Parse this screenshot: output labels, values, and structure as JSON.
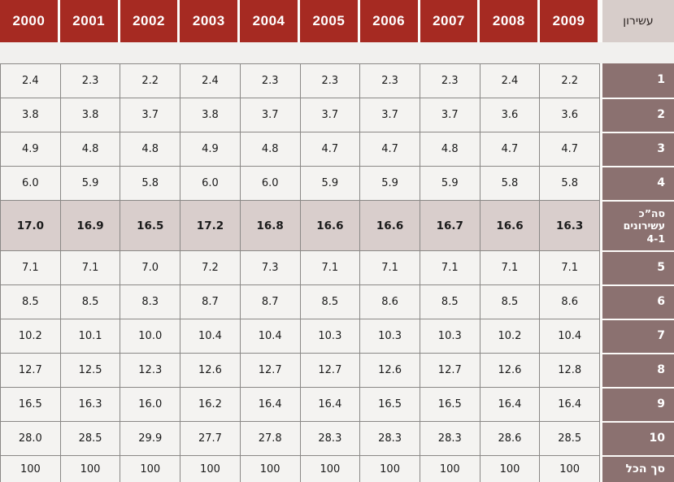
{
  "chart_data": {
    "type": "table",
    "direction": "rtl",
    "row_header_label": "עשירון",
    "columns": [
      "2000",
      "2001",
      "2002",
      "2003",
      "2004",
      "2005",
      "2006",
      "2007",
      "2008",
      "2009"
    ],
    "rows": [
      {
        "label": "1",
        "kind": "data",
        "values": [
          "2.4",
          "2.3",
          "2.2",
          "2.4",
          "2.3",
          "2.3",
          "2.3",
          "2.3",
          "2.4",
          "2.2"
        ]
      },
      {
        "label": "2",
        "kind": "data",
        "values": [
          "3.8",
          "3.8",
          "3.7",
          "3.8",
          "3.7",
          "3.7",
          "3.7",
          "3.7",
          "3.6",
          "3.6"
        ]
      },
      {
        "label": "3",
        "kind": "data",
        "values": [
          "4.9",
          "4.8",
          "4.8",
          "4.9",
          "4.8",
          "4.7",
          "4.7",
          "4.8",
          "4.7",
          "4.7"
        ]
      },
      {
        "label": "4",
        "kind": "data",
        "values": [
          "6.0",
          "5.9",
          "5.8",
          "6.0",
          "6.0",
          "5.9",
          "5.9",
          "5.9",
          "5.8",
          "5.8"
        ]
      },
      {
        "label": "סה”כ\nעשירונים\n4-1",
        "kind": "summary",
        "values": [
          "17.0",
          "16.9",
          "16.5",
          "17.2",
          "16.8",
          "16.6",
          "16.6",
          "16.7",
          "16.6",
          "16.3"
        ]
      },
      {
        "label": "5",
        "kind": "data",
        "values": [
          "7.1",
          "7.1",
          "7.0",
          "7.2",
          "7.3",
          "7.1",
          "7.1",
          "7.1",
          "7.1",
          "7.1"
        ]
      },
      {
        "label": "6",
        "kind": "data",
        "values": [
          "8.5",
          "8.5",
          "8.3",
          "8.7",
          "8.7",
          "8.5",
          "8.6",
          "8.5",
          "8.5",
          "8.6"
        ]
      },
      {
        "label": "7",
        "kind": "data",
        "values": [
          "10.2",
          "10.1",
          "10.0",
          "10.4",
          "10.4",
          "10.3",
          "10.3",
          "10.3",
          "10.2",
          "10.4"
        ]
      },
      {
        "label": "8",
        "kind": "data",
        "values": [
          "12.7",
          "12.5",
          "12.3",
          "12.6",
          "12.7",
          "12.7",
          "12.6",
          "12.7",
          "12.6",
          "12.8"
        ]
      },
      {
        "label": "9",
        "kind": "data",
        "values": [
          "16.5",
          "16.3",
          "16.0",
          "16.2",
          "16.4",
          "16.4",
          "16.5",
          "16.5",
          "16.4",
          "16.4"
        ]
      },
      {
        "label": "10",
        "kind": "data",
        "values": [
          "28.0",
          "28.5",
          "29.9",
          "27.7",
          "27.8",
          "28.3",
          "28.3",
          "28.3",
          "28.6",
          "28.5"
        ]
      },
      {
        "label": "סך הכל",
        "kind": "total",
        "values": [
          "100",
          "100",
          "100",
          "100",
          "100",
          "100",
          "100",
          "100",
          "100",
          "100"
        ]
      }
    ],
    "colors": {
      "header_bg": "#A62A22",
      "header_label_bg": "#D7CDCA",
      "label_bg": "#8B7170",
      "cell_bg": "#F4F3F1",
      "summary_bg": "#D9CECC",
      "page_bg": "#F1F0EE"
    }
  }
}
